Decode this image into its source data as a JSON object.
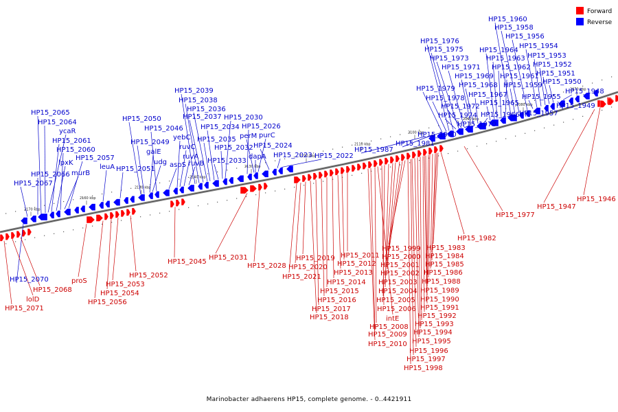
{
  "title": "Marinobacter adhaerens HP15, complete genome. - 0..4421911",
  "legend": [
    {
      "label": "Forward",
      "color": "#ff0000"
    },
    {
      "label": "Reverse",
      "color": "#0000ff"
    }
  ],
  "colors": {
    "forward": "#ff0000",
    "reverse": "#0000ff",
    "backbone": "#888888",
    "forward_label": "#cc0000",
    "reverse_label": "#0000cc"
  },
  "ticks": [
    "2170 kbp",
    "2160 kbp",
    "2150 kbp",
    "2140 kbp",
    "2130 kbp",
    "2120 kbp",
    "2110 kbp",
    "2100 kbp",
    "2090 kbp",
    "2080 kbp",
    "2070 kbp"
  ],
  "reverse_labels": [
    "HP15_2070",
    "HP15_2067",
    "HP15_2066",
    "HP15_2065",
    "HP15_2064",
    "ycaR",
    "HP15_2061",
    "lpxK",
    "HP15_2060",
    "murB",
    "HP15_2057",
    "leuA",
    "HP15_2051",
    "HP15_2050",
    "HP15_2049",
    "galE",
    "udg",
    "HP15_2046",
    "aspS",
    "yebC",
    "ruvC",
    "ruvA",
    "ruvB",
    "HP15_2039",
    "HP15_2038",
    "HP15_2037",
    "HP15_2036",
    "HP15_2035",
    "HP15_2034",
    "HP15_2033",
    "HP15_2032",
    "HP15_2030",
    "HP15_2026",
    "perM",
    "purC",
    "dapA",
    "HP15_2024",
    "HP15_2023",
    "HP15_2022",
    "HP15_1987",
    "HP15_1981",
    "HP15_1980",
    "HP15_1979",
    "HP15_1978",
    "HP15_1976",
    "HP15_1975",
    "HP15_1974",
    "HP15_1973",
    "HP15_1972",
    "HP15_1971",
    "HP15_1970",
    "HP15_1969",
    "HP15_1968",
    "HP15_1967",
    "HP15_1966",
    "HP15_1965",
    "HP15_1964",
    "HP15_1963",
    "HP15_1962",
    "HP15_1961",
    "HP15_1960",
    "HP15_1959",
    "HP15_1958",
    "HP15_1957",
    "HP15_1956",
    "HP15_1955",
    "HP15_1954",
    "HP15_1953",
    "HP15_1952",
    "HP15_1951",
    "HP15_1950",
    "HP15_1949",
    "HP15_1948"
  ],
  "forward_labels": [
    "HP15_2071",
    "lolD",
    "HP15_2068",
    "proS",
    "HP15_2056",
    "HP15_2054",
    "HP15_2053",
    "HP15_2052",
    "HP15_2045",
    "HP15_2031",
    "HP15_2028",
    "HP15_2021",
    "HP15_2020",
    "HP15_2019",
    "HP15_2018",
    "HP15_2017",
    "HP15_2016",
    "HP15_2015",
    "HP15_2014",
    "HP15_2013",
    "HP15_2012",
    "HP15_2011",
    "HP15_2010",
    "HP15_2009",
    "HP15_2008",
    "intE",
    "HP15_2006",
    "HP15_2005",
    "HP15_2004",
    "HP15_2003",
    "HP15_2002",
    "HP15_2001",
    "HP15_2000",
    "HP15_1999",
    "HP15_1998",
    "HP15_1997",
    "HP15_1996",
    "HP15_1995",
    "HP15_1994",
    "HP15_1993",
    "HP15_1992",
    "HP15_1991",
    "HP15_1990",
    "HP15_1989",
    "HP15_1988",
    "HP15_1986",
    "HP15_1985",
    "HP15_1984",
    "HP15_1983",
    "HP15_1982",
    "HP15_1977",
    "HP15_1947",
    "HP15_1946"
  ]
}
